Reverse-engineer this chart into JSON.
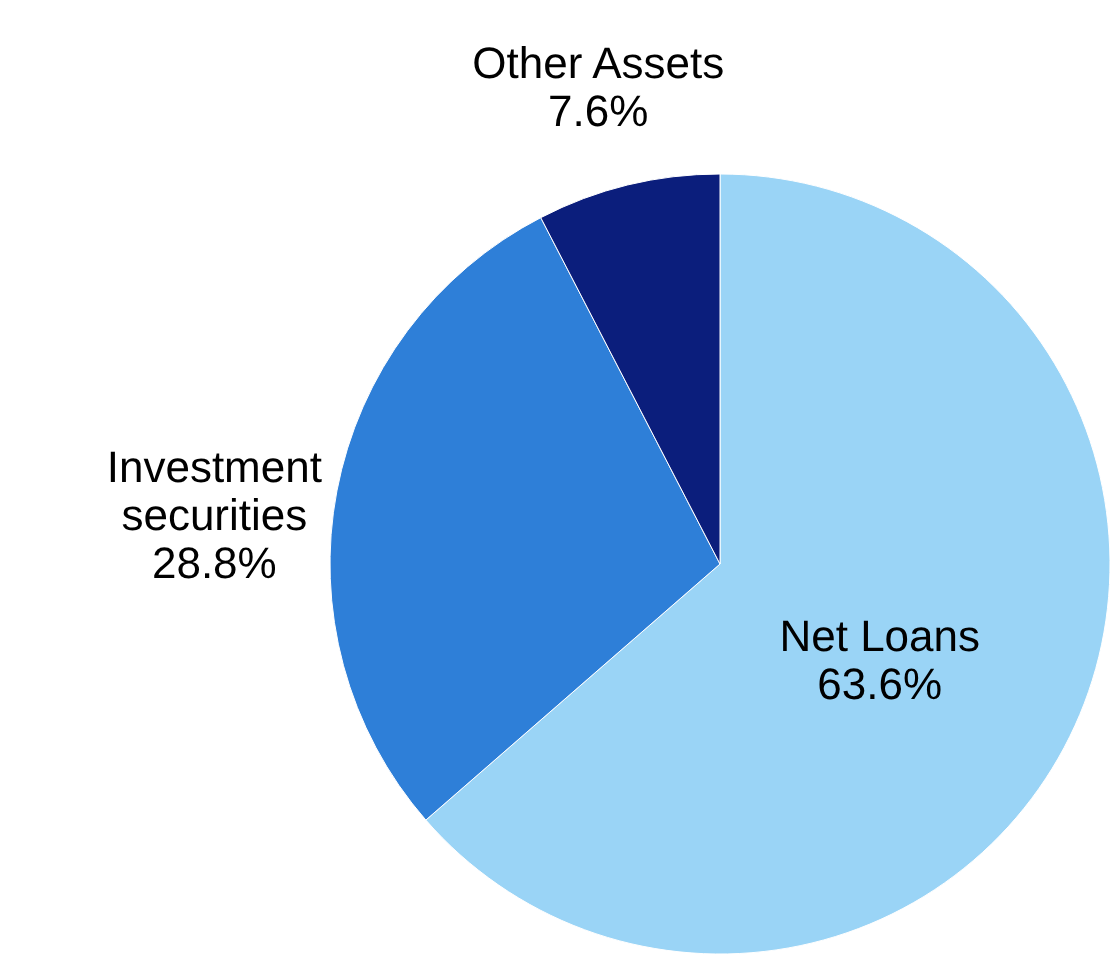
{
  "chart_data": {
    "type": "pie",
    "categories": [
      "Net Loans",
      "Investment securities",
      "Other Assets"
    ],
    "values": [
      63.6,
      28.8,
      7.6
    ],
    "value_labels": [
      "63.6%",
      "28.8%",
      "7.6%"
    ],
    "colors": [
      "#9ad4f6",
      "#2e7fd8",
      "#0b1e7c"
    ]
  }
}
